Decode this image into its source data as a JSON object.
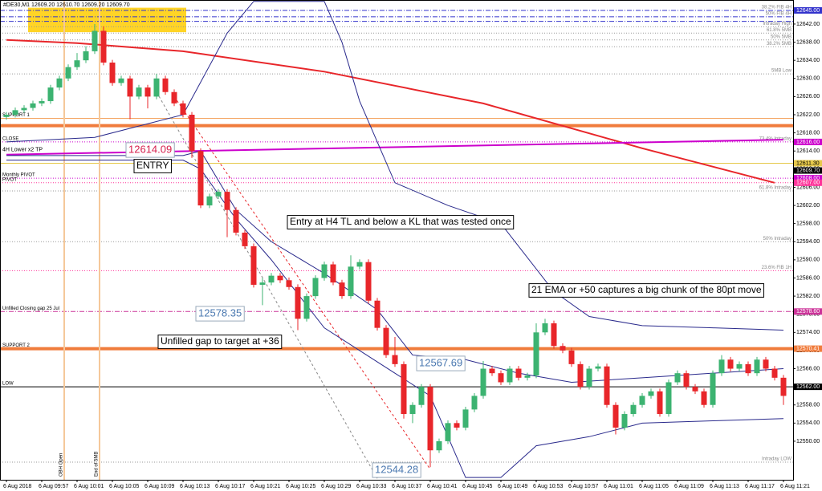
{
  "chart_data": {
    "type": "candlestick",
    "header": "#DE30,M1  12609.20 12610.70 12609.20 12609.70",
    "ylim": [
      12541.5,
      12647.3
    ],
    "yticks": [
      {
        "value": 12550,
        "label": "12550.00"
      },
      {
        "value": 12554,
        "label": "12554.00"
      },
      {
        "value": 12558,
        "label": "12558.00"
      },
      {
        "value": 12562,
        "label": "12562.00"
      },
      {
        "value": 12566,
        "label": "12566.00"
      },
      {
        "value": 12570,
        "label": "12570.00"
      },
      {
        "value": 12574,
        "label": "12574.00"
      },
      {
        "value": 12578,
        "label": "12578.00"
      },
      {
        "value": 12582,
        "label": "12582.00"
      },
      {
        "value": 12586,
        "label": "12586.00"
      },
      {
        "value": 12590,
        "label": "12590.00"
      },
      {
        "value": 12594,
        "label": "12594.00"
      },
      {
        "value": 12598,
        "label": "12598.00"
      },
      {
        "value": 12602,
        "label": "12602.00"
      },
      {
        "value": 12606,
        "label": "12606.00"
      },
      {
        "value": 12610,
        "label": "12610.00"
      },
      {
        "value": 12614,
        "label": "12614.00"
      },
      {
        "value": 12618,
        "label": "12618.00"
      },
      {
        "value": 12622,
        "label": "12622.00"
      },
      {
        "value": 12626,
        "label": "12626.00"
      },
      {
        "value": 12630,
        "label": "12630.00"
      },
      {
        "value": 12634,
        "label": "12634.00"
      },
      {
        "value": 12638,
        "label": "12638.00"
      },
      {
        "value": 12642,
        "label": "12642.00"
      }
    ],
    "categories": [
      "6 Aug 2018",
      null,
      null,
      null,
      "6 Aug 09:57",
      null,
      null,
      null,
      "6 Aug 10:01",
      null,
      null,
      null,
      "6 Aug 10:05",
      null,
      null,
      null,
      "6 Aug 10:09",
      null,
      null,
      null,
      "6 Aug 10:13",
      null,
      null,
      null,
      "6 Aug 10:17",
      null,
      null,
      null,
      "6 Aug 10:21",
      null,
      null,
      null,
      "6 Aug 10:25",
      null,
      null,
      null,
      "6 Aug 10:29",
      null,
      null,
      null,
      "6 Aug 10:33",
      null,
      null,
      null,
      "6 Aug 10:37",
      null,
      null,
      null,
      "6 Aug 10:41",
      null,
      null,
      null,
      "6 Aug 10:45",
      null,
      null,
      null,
      "6 Aug 10:49",
      null,
      null,
      null,
      "6 Aug 10:53",
      null,
      null,
      null,
      "6 Aug 10:57",
      null,
      null,
      null,
      "6 Aug 11:01",
      null,
      null,
      null,
      "6 Aug 11:05",
      null,
      null,
      null,
      "6 Aug 11:09",
      null,
      null,
      null,
      "6 Aug 11:13",
      null,
      null,
      null,
      "6 Aug 11:17",
      null,
      null,
      null,
      "6 Aug 11:21"
    ],
    "up_color": "#3cb371",
    "down_color": "#e8262a",
    "ohlc": [
      [
        12621.5,
        12622.6,
        12620.9,
        12622.0
      ],
      [
        12622.0,
        12623.6,
        12621.4,
        12623.0
      ],
      [
        12623.0,
        12624.1,
        12622.4,
        12623.5
      ],
      [
        12623.5,
        12625.1,
        12622.9,
        12624.5
      ],
      [
        12624.5,
        12625.6,
        12623.9,
        12625.0
      ],
      [
        12625.0,
        12628.6,
        12624.4,
        12628.0
      ],
      [
        12628.0,
        12630.6,
        12627.4,
        12630.0
      ],
      [
        12630.0,
        12633.1,
        12629.4,
        12632.5
      ],
      [
        12632.5,
        12635.6,
        12631.9,
        12634.0
      ],
      [
        12634.0,
        12637.1,
        12633.4,
        12636.0
      ],
      [
        12636.0,
        12642.0,
        12635.4,
        12640.5
      ],
      [
        12640.5,
        12641.5,
        12632.9,
        12633.5
      ],
      [
        12633.5,
        12634.1,
        12628.4,
        12629.0
      ],
      [
        12629.0,
        12630.6,
        12628.4,
        12630.0
      ],
      [
        12630.0,
        12630.6,
        12621.0,
        12626.0
      ],
      [
        12626.0,
        12628.6,
        12625.4,
        12628.0
      ],
      [
        12628.0,
        12628.6,
        12623.4,
        12626.0
      ],
      [
        12626.0,
        12631.0,
        12625.4,
        12630.0
      ],
      [
        12630.0,
        12630.6,
        12626.4,
        12627.0
      ],
      [
        12627.0,
        12627.6,
        12623.9,
        12624.5
      ],
      [
        12624.5,
        12625.1,
        12621.4,
        12622.0
      ],
      [
        12622.0,
        12622.6,
        12612.5,
        12614.0
      ],
      [
        12614.0,
        12614.6,
        12601.4,
        12602.0
      ],
      [
        12602.0,
        12604.6,
        12601.4,
        12604.0
      ],
      [
        12604.0,
        12605.6,
        12603.4,
        12605.0
      ],
      [
        12605.0,
        12605.6,
        12595.0,
        12601.0
      ],
      [
        12601.0,
        12601.6,
        12595.4,
        12596.0
      ],
      [
        12596.0,
        12596.6,
        12592.4,
        12593.0
      ],
      [
        12593.0,
        12593.6,
        12583.9,
        12584.5
      ],
      [
        12584.5,
        12586.0,
        12580.0,
        12585.0
      ],
      [
        12585.0,
        12587.1,
        12584.4,
        12586.5
      ],
      [
        12586.5,
        12587.1,
        12584.9,
        12585.5
      ],
      [
        12585.5,
        12586.1,
        12583.4,
        12584.0
      ],
      [
        12584.0,
        12584.6,
        12574.5,
        12577.0
      ],
      [
        12577.0,
        12582.6,
        12576.4,
        12582.0
      ],
      [
        12582.0,
        12586.6,
        12581.4,
        12586.0
      ],
      [
        12586.0,
        12589.6,
        12585.4,
        12589.0
      ],
      [
        12589.0,
        12589.6,
        12584.4,
        12585.0
      ],
      [
        12585.0,
        12585.6,
        12581.4,
        12582.0
      ],
      [
        12582.0,
        12591.0,
        12581.4,
        12588.5
      ],
      [
        12588.5,
        12590.1,
        12587.9,
        12589.5
      ],
      [
        12589.5,
        12590.1,
        12580.4,
        12581.0
      ],
      [
        12581.0,
        12581.6,
        12574.4,
        12575.0
      ],
      [
        12575.0,
        12575.6,
        12568.4,
        12569.0
      ],
      [
        12569.0,
        12573.0,
        12566.4,
        12567.0
      ],
      [
        12567.0,
        12567.6,
        12555.0,
        12556.0
      ],
      [
        12556.0,
        12558.6,
        12554.0,
        12558.0
      ],
      [
        12558.0,
        12562.6,
        12557.4,
        12562.0
      ],
      [
        12562.0,
        12562.6,
        12544.28,
        12548.0
      ],
      [
        12548.0,
        12550.6,
        12547.4,
        12550.0
      ],
      [
        12550.0,
        12554.6,
        12549.4,
        12554.0
      ],
      [
        12554.0,
        12554.6,
        12552.4,
        12553.0
      ],
      [
        12553.0,
        12557.6,
        12552.4,
        12557.0
      ],
      [
        12557.0,
        12560.6,
        12556.4,
        12560.0
      ],
      [
        12560.0,
        12567.69,
        12559.4,
        12566.0
      ],
      [
        12566.0,
        12566.6,
        12564.4,
        12565.0
      ],
      [
        12565.0,
        12565.6,
        12562.4,
        12563.0
      ],
      [
        12563.0,
        12566.6,
        12562.4,
        12566.0
      ],
      [
        12566.0,
        12566.6,
        12563.4,
        12564.0
      ],
      [
        12564.0,
        12565.1,
        12563.4,
        12564.5
      ],
      [
        12564.5,
        12576.0,
        12563.9,
        12574.0
      ],
      [
        12574.0,
        12577.0,
        12573.4,
        12576.0
      ],
      [
        12576.0,
        12576.6,
        12570.4,
        12571.0
      ],
      [
        12571.0,
        12571.6,
        12569.4,
        12570.0
      ],
      [
        12570.0,
        12570.6,
        12566.4,
        12567.0
      ],
      [
        12567.0,
        12567.6,
        12561.4,
        12562.0
      ],
      [
        12562.0,
        12566.6,
        12561.4,
        12566.0
      ],
      [
        12566.0,
        12567.1,
        12565.4,
        12566.5
      ],
      [
        12566.5,
        12567.1,
        12557.4,
        12558.0
      ],
      [
        12558.0,
        12558.6,
        12551.5,
        12553.0
      ],
      [
        12553.0,
        12556.6,
        12552.4,
        12556.0
      ],
      [
        12556.0,
        12558.6,
        12555.4,
        12558.0
      ],
      [
        12558.0,
        12560.6,
        12557.4,
        12560.0
      ],
      [
        12560.0,
        12561.6,
        12559.4,
        12561.0
      ],
      [
        12561.0,
        12561.6,
        12555.4,
        12556.0
      ],
      [
        12556.0,
        12563.6,
        12555.4,
        12563.0
      ],
      [
        12563.0,
        12565.6,
        12562.4,
        12565.0
      ],
      [
        12565.0,
        12565.6,
        12561.4,
        12562.0
      ],
      [
        12562.0,
        12562.6,
        12560.4,
        12561.0
      ],
      [
        12561.0,
        12561.6,
        12557.4,
        12558.0
      ],
      [
        12558.0,
        12565.6,
        12557.4,
        12565.0
      ],
      [
        12565.0,
        12569.0,
        12564.4,
        12568.0
      ],
      [
        12568.0,
        12568.6,
        12565.4,
        12566.0
      ],
      [
        12566.0,
        12567.6,
        12565.4,
        12567.0
      ],
      [
        12567.0,
        12567.6,
        12564.4,
        12565.0
      ],
      [
        12565.0,
        12568.6,
        12564.4,
        12568.0
      ],
      [
        12568.0,
        12568.6,
        12565.4,
        12566.0
      ],
      [
        12566.0,
        12566.6,
        12563.4,
        12564.0
      ],
      [
        12564.0,
        12564.6,
        12558.0,
        12560.0
      ]
    ],
    "lines": [
      {
        "color": "#e8262a",
        "width": 2,
        "x": [
          0,
          8,
          20,
          36,
          54,
          72,
          87
        ],
        "values": [
          12638.5,
          12637.8,
          12636,
          12631.5,
          12624.5,
          12614.6,
          12607
        ]
      },
      {
        "name": "4H Lower x2 TP",
        "color": "#cc00cc",
        "width": 2,
        "x": [
          0,
          88
        ],
        "values": [
          12613.2,
          12616.5
        ]
      },
      {
        "color": "#2a2a8c",
        "width": 1,
        "x": [
          0,
          10,
          20,
          25,
          28,
          36,
          38,
          40,
          44,
          50,
          56,
          62,
          66,
          72,
          80,
          88
        ],
        "values": [
          12616,
          12617,
          12622,
          12640,
          12647,
          12647,
          12638,
          12625,
          12607,
          12602,
          12598,
          12583,
          12577.5,
          12575.5,
          12575,
          12574.5
        ]
      },
      {
        "color": "#2a2a8c",
        "width": 1,
        "x": [
          0,
          20,
          22,
          26,
          30,
          36,
          40,
          44,
          48,
          52,
          56,
          60,
          66,
          72,
          80,
          88
        ],
        "values": [
          12612,
          12612,
          12610,
          12599,
          12590,
          12575,
          12570,
          12565,
          12560,
          12542,
          12542,
          12549,
          12551,
          12554,
          12554.5,
          12555
        ]
      },
      {
        "color": "#2a2a8c",
        "width": 1,
        "x": [
          0,
          20,
          22,
          26,
          30,
          36,
          42,
          46,
          52,
          58,
          64,
          72,
          80,
          88
        ],
        "values": [
          12613,
          12613,
          12614,
          12601,
          12594,
          12587,
          12579,
          12569,
          12568,
          12565,
          12563,
          12564,
          12565,
          12566
        ]
      },
      {
        "color": "#e8262a",
        "width": 1,
        "dash": "3,3",
        "x": [
          19,
          48
        ],
        "values": [
          12626,
          12543.8
        ]
      },
      {
        "color": "#888888",
        "width": 1,
        "dash": "3,3",
        "x": [
          17,
          42
        ],
        "values": [
          12627,
          12541.8
        ]
      }
    ],
    "zones": [
      {
        "from": 12640.2,
        "to": 12645.6,
        "color": "#ffcc00"
      }
    ],
    "vlines": [
      {
        "text": "OBH Open",
        "color": "#f5c89a"
      },
      {
        "text": "End of 5MB",
        "color": "#f5c89a"
      }
    ],
    "levels": [
      {
        "value": 12645.0,
        "color": "#3333cc",
        "style": "dashdot",
        "text": "38.2% FIB 4H",
        "axis_label": "12645.00"
      },
      {
        "value": 12643.6,
        "color": "#3333cc",
        "style": "dashdot",
        "text": "50% FIB 4H"
      },
      {
        "value": 12642.6,
        "color": "#3333cc",
        "style": "dashdot"
      },
      {
        "value": 12641.4,
        "color": "#999999",
        "style": "dot",
        "text": "Intraday High"
      },
      {
        "value": 12640.0,
        "color": "#999999",
        "style": "dot",
        "text": "61.8% 5MB"
      },
      {
        "value": 12638.5,
        "color": "#999999",
        "style": "dot",
        "text": "50% 5MB"
      },
      {
        "value": 12637.0,
        "color": "#999999",
        "style": "dot",
        "text": "38.2% 5MB"
      },
      {
        "value": 12631.0,
        "color": "#999999",
        "style": "dot",
        "text": "5MB Low"
      },
      {
        "value": 12621.2,
        "color": "#f4a460",
        "style": "solid",
        "left_text": "SUPPORT 1"
      },
      {
        "value": 12619.6,
        "color": "#f07c3c",
        "style": "thick"
      },
      {
        "value": 12616.0,
        "color": "#cc00cc",
        "style": "dot",
        "text": "73.4% Intraday",
        "left_text": "CLOSE",
        "axis_label": "12616.00"
      },
      {
        "value": 12611.3,
        "color": "#e6c84a",
        "style": "solid",
        "axis_label": "12611.30"
      },
      {
        "value": 12609.7,
        "color": "#000000",
        "style": "none",
        "axis_label": "12609.70"
      },
      {
        "value": 12608.0,
        "color": "#cc00cc",
        "style": "dot",
        "left_text": "Monthly PIVOT",
        "axis_label": "12608.00"
      },
      {
        "value": 12607.0,
        "color": "#ff3399",
        "style": "dot",
        "left_text": "PIVOT",
        "axis_label": "12607.00"
      },
      {
        "value": 12605.2,
        "color": "#999999",
        "style": "dot",
        "text": "61.8% Intraday"
      },
      {
        "value": 12594.0,
        "color": "#999999",
        "style": "dot",
        "text": "50% Intraday"
      },
      {
        "value": 12587.6,
        "color": "#ff3399",
        "style": "dot",
        "text": "23.6% FIB 1H"
      },
      {
        "value": 12578.6,
        "color": "#cc3399",
        "style": "dashdot",
        "left_text": "Unfilled Closing gap 25 Jul",
        "axis_label": "12578.60"
      },
      {
        "value": 12570.41,
        "color": "#f07c3c",
        "style": "thick",
        "left_text": "SUPPORT 2",
        "axis_label": "12570.41"
      },
      {
        "value": 12562.0,
        "color": "#000000",
        "style": "solid",
        "left_text": "LOW",
        "axis_label": "12562.00"
      },
      {
        "value": 12545.4,
        "color": "#999999",
        "style": "dot",
        "text": "Intraday LOW"
      }
    ],
    "annotations": [
      {
        "text": "12614.09",
        "color": "#d6204e"
      },
      {
        "text": "ENTRY",
        "color": "#000000"
      },
      {
        "text": "Entry at H4 TL and below a KL that was tested once",
        "color": "#000000"
      },
      {
        "text": "21 EMA or +50 captures a big chunk of the 80pt  move",
        "color": "#000000"
      },
      {
        "text": "12578.35",
        "color": "#4a78b0"
      },
      {
        "text": "Unfilled gap to target at +36",
        "color": "#000000"
      },
      {
        "text": "12567.69",
        "color": "#4a78b0"
      },
      {
        "text": "12544.28",
        "color": "#4a78b0"
      }
    ]
  }
}
